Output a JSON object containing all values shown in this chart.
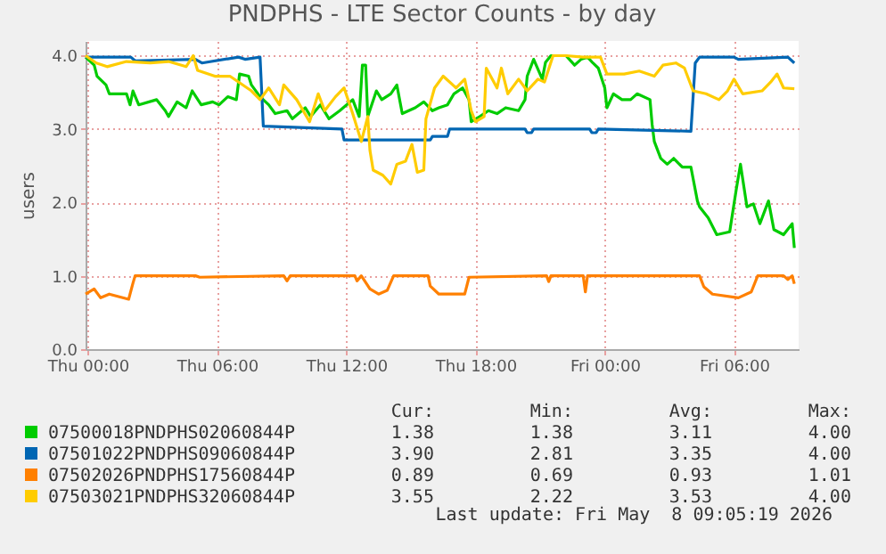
{
  "chart_data": {
    "type": "line",
    "title": "PNDPHS - LTE Sector Counts - by day",
    "ylabel": "users",
    "xlim": [
      "2026-05-06T23:54",
      "2026-05-08T09:00"
    ],
    "xticks": [
      {
        "value": "2026-05-07T00:00",
        "label": "Thu 00:00"
      },
      {
        "value": "2026-05-07T06:00",
        "label": "Thu 06:00"
      },
      {
        "value": "2026-05-07T12:00",
        "label": "Thu 12:00"
      },
      {
        "value": "2026-05-07T18:00",
        "label": "Thu 18:00"
      },
      {
        "value": "2026-05-08T00:00",
        "label": "Fri 00:00"
      },
      {
        "value": "2026-05-08T06:00",
        "label": "Fri 06:00"
      }
    ],
    "ylim": [
      0,
      4.2
    ],
    "yticks": [
      {
        "value": 0,
        "label": "0.0"
      },
      {
        "value": 1,
        "label": "1.0"
      },
      {
        "value": 2,
        "label": "2.0"
      },
      {
        "value": 3,
        "label": "3.0"
      },
      {
        "value": 4,
        "label": "4.0"
      }
    ],
    "grid": true,
    "legend": "bottom",
    "line_style": "solid",
    "marker": "none",
    "series": [
      {
        "name": "07500018PNDPHS02060844P",
        "color": "#00cc00",
        "x": [
          "2026-05-06T23:54",
          "2026-05-07T00:18",
          "2026-05-07T00:26",
          "2026-05-07T00:51",
          "2026-05-07T01:00",
          "2026-05-07T01:48",
          "2026-05-07T01:58",
          "2026-05-07T02:06",
          "2026-05-07T02:22",
          "2026-05-07T03:12",
          "2026-05-07T03:36",
          "2026-05-07T03:45",
          "2026-05-07T04:09",
          "2026-05-07T04:34",
          "2026-05-07T04:51",
          "2026-05-07T05:16",
          "2026-05-07T05:48",
          "2026-05-07T06:06",
          "2026-05-07T06:30",
          "2026-05-07T06:54",
          "2026-05-07T07:03",
          "2026-05-07T07:28",
          "2026-05-07T07:36",
          "2026-05-07T08:00",
          "2026-05-07T08:24",
          "2026-05-07T08:42",
          "2026-05-07T09:15",
          "2026-05-07T09:30",
          "2026-05-07T10:06",
          "2026-05-07T10:21",
          "2026-05-07T10:48",
          "2026-05-07T11:12",
          "2026-05-07T11:42",
          "2026-05-07T12:18",
          "2026-05-07T12:36",
          "2026-05-07T12:45",
          "2026-05-07T12:54",
          "2026-05-07T13:00",
          "2026-05-07T13:24",
          "2026-05-07T13:39",
          "2026-05-07T14:04",
          "2026-05-07T14:21",
          "2026-05-07T14:36",
          "2026-05-07T15:12",
          "2026-05-07T15:36",
          "2026-05-07T16:00",
          "2026-05-07T16:18",
          "2026-05-07T16:42",
          "2026-05-07T17:00",
          "2026-05-07T17:24",
          "2026-05-07T17:42",
          "2026-05-07T17:48",
          "2026-05-07T18:12",
          "2026-05-07T18:36",
          "2026-05-07T19:00",
          "2026-05-07T19:24",
          "2026-05-07T20:00",
          "2026-05-07T20:18",
          "2026-05-07T20:24",
          "2026-05-07T20:42",
          "2026-05-07T21:06",
          "2026-05-07T21:15",
          "2026-05-07T21:30",
          "2026-05-07T22:12",
          "2026-05-07T22:36",
          "2026-05-07T22:54",
          "2026-05-07T23:12",
          "2026-05-07T23:27",
          "2026-05-07T23:42",
          "2026-05-08T00:00",
          "2026-05-08T00:06",
          "2026-05-08T00:24",
          "2026-05-08T00:48",
          "2026-05-08T01:12",
          "2026-05-08T01:30",
          "2026-05-08T02:06",
          "2026-05-08T02:12",
          "2026-05-08T02:18",
          "2026-05-08T02:36",
          "2026-05-08T02:54",
          "2026-05-08T03:12",
          "2026-05-08T03:36",
          "2026-05-08T04:00",
          "2026-05-08T04:18",
          "2026-05-08T04:24",
          "2026-05-08T04:48",
          "2026-05-08T05:12",
          "2026-05-08T05:48",
          "2026-05-08T06:06",
          "2026-05-08T06:18",
          "2026-05-08T06:36",
          "2026-05-08T06:54",
          "2026-05-08T07:12",
          "2026-05-08T07:36",
          "2026-05-08T07:51",
          "2026-05-08T08:18",
          "2026-05-08T08:42",
          "2026-05-08T08:48"
        ],
        "values": [
          3.98,
          3.87,
          3.72,
          3.6,
          3.48,
          3.48,
          3.33,
          3.52,
          3.33,
          3.4,
          3.25,
          3.17,
          3.37,
          3.29,
          3.52,
          3.33,
          3.37,
          3.33,
          3.44,
          3.4,
          3.75,
          3.72,
          3.6,
          3.44,
          3.33,
          3.21,
          3.25,
          3.14,
          3.29,
          3.17,
          3.33,
          3.14,
          3.25,
          3.4,
          3.17,
          3.87,
          3.87,
          3.17,
          3.52,
          3.4,
          3.48,
          3.6,
          3.21,
          3.29,
          3.37,
          3.25,
          3.29,
          3.33,
          3.48,
          3.56,
          3.4,
          3.1,
          3.17,
          3.25,
          3.21,
          3.29,
          3.25,
          3.4,
          3.72,
          3.95,
          3.68,
          3.91,
          4.0,
          4.0,
          3.87,
          3.95,
          3.98,
          3.9,
          3.83,
          3.56,
          3.29,
          3.48,
          3.4,
          3.4,
          3.48,
          3.4,
          3.06,
          2.83,
          2.6,
          2.52,
          2.6,
          2.48,
          2.48,
          2.02,
          1.94,
          1.79,
          1.56,
          1.6,
          2.17,
          2.52,
          1.94,
          1.98,
          1.71,
          2.02,
          1.63,
          1.56,
          1.71,
          1.38
        ]
      },
      {
        "name": "07501022PNDPHS09060844P",
        "color": "#0066b3",
        "x": [
          "2026-05-06T23:54",
          "2026-05-07T02:00",
          "2026-05-07T02:12",
          "2026-05-07T05:00",
          "2026-05-07T05:18",
          "2026-05-07T07:00",
          "2026-05-07T07:18",
          "2026-05-07T08:00",
          "2026-05-07T08:09",
          "2026-05-07T11:48",
          "2026-05-07T11:54",
          "2026-05-07T15:54",
          "2026-05-07T16:00",
          "2026-05-07T16:42",
          "2026-05-07T16:48",
          "2026-05-07T20:18",
          "2026-05-07T20:24",
          "2026-05-07T20:36",
          "2026-05-07T20:42",
          "2026-05-07T23:18",
          "2026-05-07T23:24",
          "2026-05-07T23:36",
          "2026-05-07T23:42",
          "2026-05-08T04:00",
          "2026-05-08T04:12",
          "2026-05-08T04:24",
          "2026-05-08T06:00",
          "2026-05-08T06:12",
          "2026-05-08T08:30",
          "2026-05-08T08:48"
        ],
        "values": [
          3.98,
          3.98,
          3.93,
          3.95,
          3.9,
          3.98,
          3.95,
          3.98,
          3.04,
          3.0,
          2.85,
          2.85,
          2.9,
          2.9,
          3.0,
          3.0,
          2.95,
          2.95,
          3.0,
          3.0,
          2.95,
          2.95,
          3.0,
          2.97,
          3.9,
          3.98,
          3.98,
          3.95,
          3.98,
          3.9
        ]
      },
      {
        "name": "07502026PNDPHS17560844P",
        "color": "#ff8000",
        "x": [
          "2026-05-06T23:54",
          "2026-05-07T00:18",
          "2026-05-07T00:36",
          "2026-05-07T01:00",
          "2026-05-07T01:54",
          "2026-05-07T02:06",
          "2026-05-07T02:12",
          "2026-05-07T05:00",
          "2026-05-07T05:12",
          "2026-05-07T09:06",
          "2026-05-07T09:15",
          "2026-05-07T09:24",
          "2026-05-07T12:24",
          "2026-05-07T12:30",
          "2026-05-07T12:42",
          "2026-05-07T13:06",
          "2026-05-07T13:30",
          "2026-05-07T13:54",
          "2026-05-07T14:12",
          "2026-05-07T15:48",
          "2026-05-07T15:54",
          "2026-05-07T16:18",
          "2026-05-07T17:30",
          "2026-05-07T17:42",
          "2026-05-07T21:18",
          "2026-05-07T21:24",
          "2026-05-07T21:30",
          "2026-05-07T23:00",
          "2026-05-07T23:06",
          "2026-05-07T23:12",
          "2026-05-08T04:24",
          "2026-05-08T04:36",
          "2026-05-08T05:00",
          "2026-05-08T06:12",
          "2026-05-08T06:48",
          "2026-05-08T07:06",
          "2026-05-08T08:18",
          "2026-05-08T08:30",
          "2026-05-08T08:42",
          "2026-05-08T08:48"
        ],
        "values": [
          0.75,
          0.82,
          0.7,
          0.75,
          0.68,
          0.9,
          1.0,
          1.0,
          0.98,
          1.0,
          0.93,
          1.0,
          1.0,
          0.93,
          1.0,
          0.82,
          0.75,
          0.8,
          1.0,
          1.0,
          0.86,
          0.75,
          0.75,
          0.98,
          1.0,
          0.92,
          1.0,
          1.0,
          0.78,
          1.0,
          1.0,
          0.85,
          0.75,
          0.7,
          0.78,
          1.0,
          1.0,
          0.95,
          1.0,
          0.89
        ]
      },
      {
        "name": "07503021PNDPHS32060844P",
        "color": "#ffcc00",
        "x": [
          "2026-05-06T23:54",
          "2026-05-07T00:24",
          "2026-05-07T00:54",
          "2026-05-07T01:48",
          "2026-05-07T02:54",
          "2026-05-07T03:45",
          "2026-05-07T04:34",
          "2026-05-07T04:54",
          "2026-05-07T05:06",
          "2026-05-07T05:54",
          "2026-05-07T06:36",
          "2026-05-07T07:36",
          "2026-05-07T08:00",
          "2026-05-07T08:24",
          "2026-05-07T08:54",
          "2026-05-07T09:06",
          "2026-05-07T09:42",
          "2026-05-07T10:18",
          "2026-05-07T10:42",
          "2026-05-07T11:00",
          "2026-05-07T11:30",
          "2026-05-07T11:54",
          "2026-05-07T12:18",
          "2026-05-07T12:42",
          "2026-05-07T13:00",
          "2026-05-07T13:06",
          "2026-05-07T13:15",
          "2026-05-07T13:42",
          "2026-05-07T14:04",
          "2026-05-07T14:21",
          "2026-05-07T14:45",
          "2026-05-07T15:03",
          "2026-05-07T15:18",
          "2026-05-07T15:36",
          "2026-05-07T15:42",
          "2026-05-07T16:06",
          "2026-05-07T16:30",
          "2026-05-07T17:06",
          "2026-05-07T17:30",
          "2026-05-07T17:48",
          "2026-05-07T18:00",
          "2026-05-07T18:24",
          "2026-05-07T18:30",
          "2026-05-07T19:00",
          "2026-05-07T19:12",
          "2026-05-07T19:30",
          "2026-05-07T20:00",
          "2026-05-07T20:24",
          "2026-05-07T20:54",
          "2026-05-07T21:12",
          "2026-05-07T21:36",
          "2026-05-07T22:12",
          "2026-05-07T23:00",
          "2026-05-07T23:48",
          "2026-05-08T00:06",
          "2026-05-08T00:54",
          "2026-05-08T01:36",
          "2026-05-08T02:18",
          "2026-05-08T02:42",
          "2026-05-08T03:18",
          "2026-05-08T03:42",
          "2026-05-08T04:06",
          "2026-05-08T04:42",
          "2026-05-08T05:18",
          "2026-05-08T05:42",
          "2026-05-08T06:00",
          "2026-05-08T06:24",
          "2026-05-08T07:18",
          "2026-05-08T07:42",
          "2026-05-08T08:00",
          "2026-05-08T08:18",
          "2026-05-08T08:48"
        ],
        "values": [
          4.0,
          3.9,
          3.85,
          3.92,
          3.9,
          3.92,
          3.85,
          4.0,
          3.8,
          3.72,
          3.72,
          3.52,
          3.4,
          3.56,
          3.33,
          3.6,
          3.4,
          3.1,
          3.48,
          3.25,
          3.44,
          3.56,
          3.21,
          2.83,
          3.17,
          2.71,
          2.44,
          2.37,
          2.25,
          2.52,
          2.56,
          2.79,
          2.41,
          2.44,
          3.14,
          3.56,
          3.72,
          3.56,
          3.68,
          3.25,
          3.1,
          3.17,
          3.83,
          3.56,
          3.83,
          3.48,
          3.68,
          3.52,
          3.68,
          3.64,
          4.0,
          4.0,
          3.98,
          3.98,
          3.75,
          3.75,
          3.79,
          3.72,
          3.87,
          3.9,
          3.83,
          3.52,
          3.48,
          3.4,
          3.52,
          3.68,
          3.48,
          3.52,
          3.64,
          3.75,
          3.56,
          3.55
        ]
      }
    ],
    "annotations": [
      "Cur:",
      "Min:",
      "Avg:",
      "Max:",
      "1.38",
      "1.38",
      "3.11",
      "4.00",
      "3.90",
      "2.81",
      "3.35",
      "4.00",
      "0.89",
      "0.69",
      "0.93",
      "1.01",
      "3.55",
      "2.22",
      "3.53",
      "4.00",
      "Last update: Fri May  8 09:05:19 2026"
    ]
  }
}
